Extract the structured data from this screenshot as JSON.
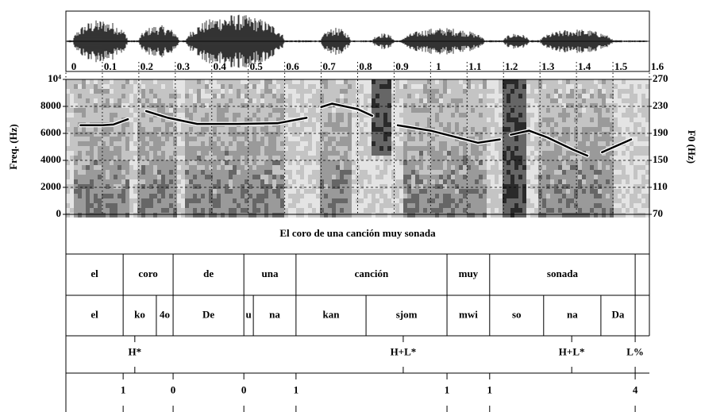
{
  "chart_data": {
    "type": "praat",
    "xlim": [
      0,
      1.6
    ],
    "xticks": [
      0,
      0.1,
      0.2,
      0.3,
      0.4,
      0.5,
      0.6,
      0.7,
      0.8,
      0.9,
      1,
      1.1,
      1.2,
      1.3,
      1.4,
      1.5,
      1.6
    ],
    "ylabel": "Freq. (Hz)",
    "ylim": [
      0,
      10000
    ],
    "yticks": [
      0,
      2000,
      4000,
      6000,
      8000,
      {
        "value": 10000,
        "label": "10⁴"
      }
    ],
    "y2label": "F0 (Hz)",
    "y2lim": [
      70,
      270
    ],
    "y2ticks": [
      70,
      110,
      150,
      190,
      230,
      270
    ],
    "grid": true,
    "axis": "y2",
    "color": "#000000",
    "x": [
      0.04,
      0.1,
      0.13,
      0.17,
      0.19,
      0.22,
      0.28,
      0.36,
      0.47,
      0.58,
      0.66,
      0.68,
      0.7,
      0.73,
      0.8,
      0.84,
      0.87,
      0.91,
      1.0,
      1.08,
      1.13,
      1.19,
      1.21,
      1.22,
      1.27,
      1.32,
      1.39,
      1.43,
      1.45,
      1.47,
      1.55
    ],
    "values": [
      202,
      202,
      203,
      211,
      null,
      223,
      213,
      204,
      204,
      205,
      213,
      null,
      229,
      234,
      226,
      216,
      null,
      202,
      194,
      183,
      176,
      181,
      null,
      188,
      194,
      184,
      166,
      157,
      null,
      162,
      181
    ],
    "tiers": [
      {
        "kind": "interval",
        "boundaries": [],
        "labels": [
          "El coro de una canción muy sonada"
        ]
      },
      {
        "kind": "interval",
        "boundaries": [
          0.157,
          0.294,
          0.488,
          0.631,
          1.045,
          1.162,
          1.561
        ],
        "labels": [
          "el",
          "coro",
          "de",
          "una",
          "canción",
          "muy",
          "sonada",
          null
        ]
      },
      {
        "kind": "interval",
        "boundaries": [
          0.157,
          0.248,
          0.294,
          0.488,
          0.514,
          0.631,
          0.823,
          1.045,
          1.162,
          1.31,
          1.467,
          1.561
        ],
        "labels": [
          "el",
          "ko",
          "4o",
          "De",
          "u",
          "na",
          "kan",
          "sjom",
          "mwi",
          "so",
          "na",
          "Da",
          null
        ]
      },
      {
        "kind": "point",
        "times": [
          0.189,
          0.925,
          1.387,
          1.561
        ],
        "labels": [
          "H*",
          "H+L*",
          "H+L*",
          "L%"
        ]
      },
      {
        "kind": "point",
        "times": [
          0.157,
          0.294,
          0.488,
          0.631,
          1.045,
          1.162,
          1.561
        ],
        "labels": [
          "1",
          "0",
          "0",
          "1",
          "1",
          "1",
          "4"
        ]
      }
    ]
  }
}
